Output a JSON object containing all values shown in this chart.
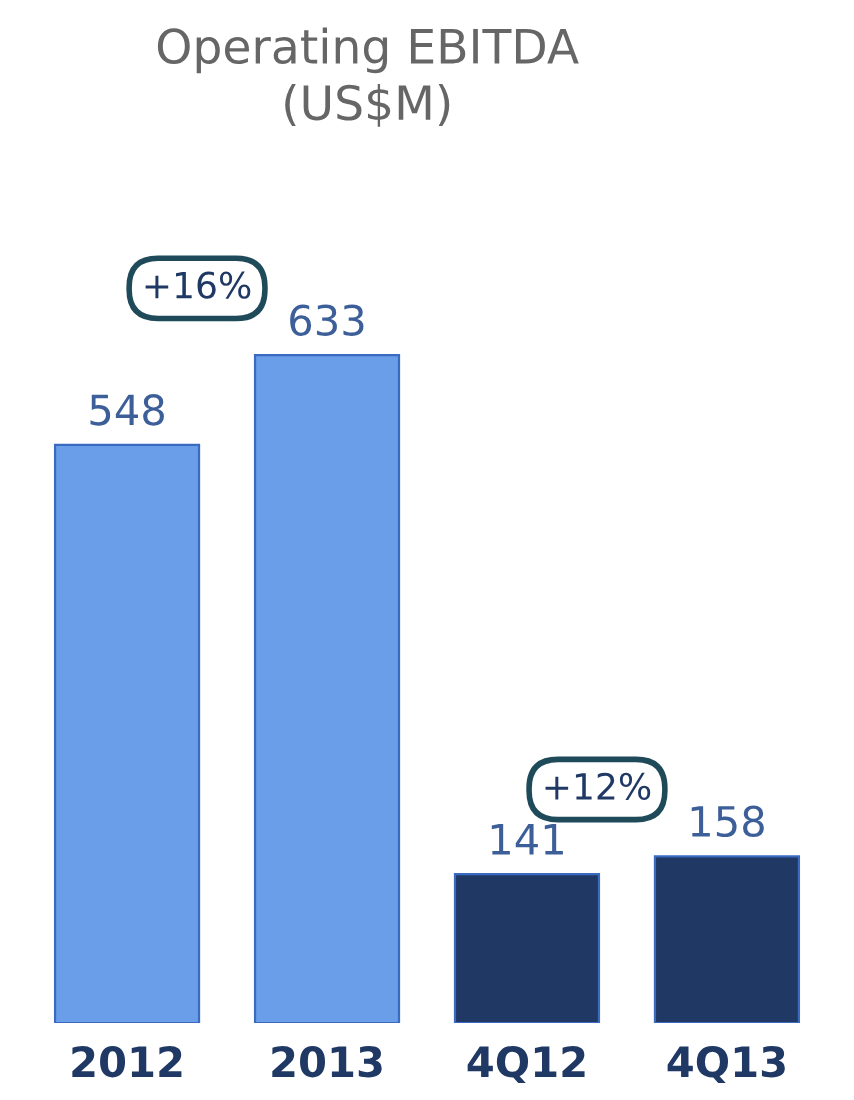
{
  "chart_data": {
    "type": "bar",
    "title": "Operating EBITDA\n(US$M)",
    "categories": [
      "2012",
      "2013",
      "4Q12",
      "4Q13"
    ],
    "values": [
      548,
      633,
      141,
      158
    ],
    "colors": [
      "#6b9ee8",
      "#6b9ee8",
      "#1f3864",
      "#1f3864"
    ],
    "data_labels": true,
    "tick_labels": "x",
    "annotations": [
      "+16%",
      "+12%"
    ]
  }
}
